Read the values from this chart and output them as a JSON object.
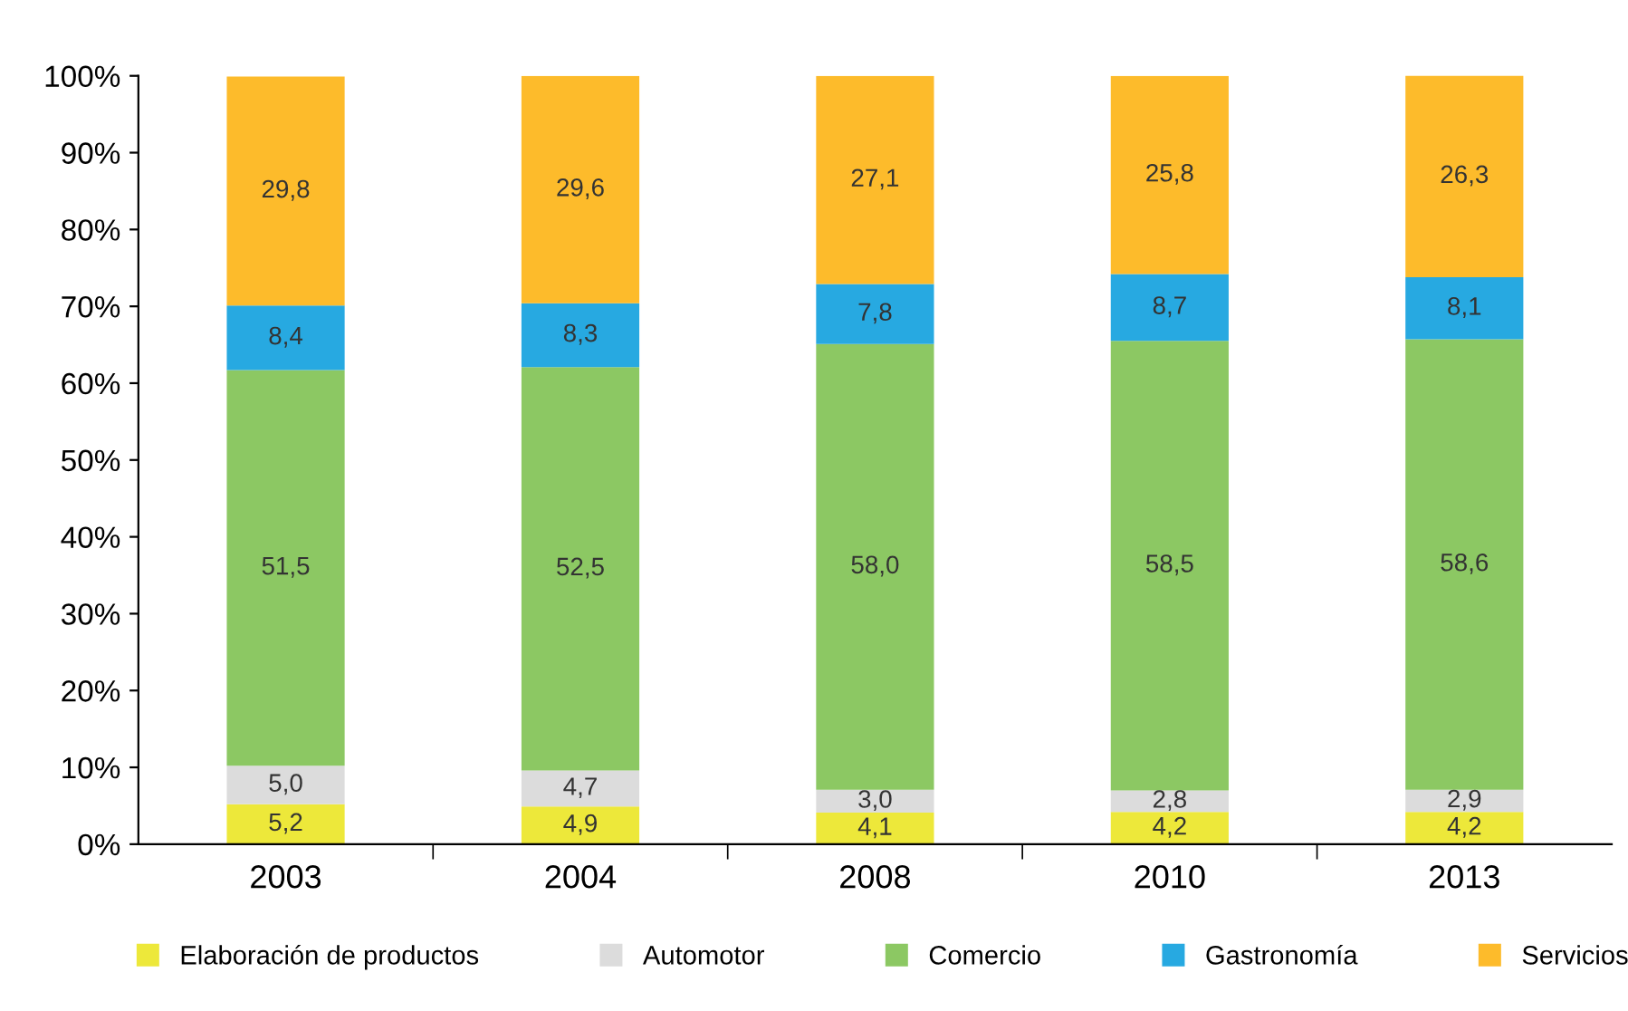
{
  "chart_data": {
    "type": "bar",
    "stacked": true,
    "categories": [
      "2003",
      "2004",
      "2008",
      "2010",
      "2013"
    ],
    "series": [
      {
        "name": "Elaboración de productos",
        "color": "#ede83a",
        "values": [
          5.2,
          4.9,
          4.1,
          4.2,
          4.2
        ],
        "value_labels": [
          "5,2",
          "4,9",
          "4,1",
          "4,2",
          "4,2"
        ]
      },
      {
        "name": "Automotor",
        "color": "#dcdcdc",
        "values": [
          5.0,
          4.7,
          3.0,
          2.8,
          2.9
        ],
        "value_labels": [
          "5,0",
          "4,7",
          "3,0",
          "2,8",
          "2,9"
        ]
      },
      {
        "name": "Comercio",
        "color": "#8cc863",
        "values": [
          51.5,
          52.5,
          58.0,
          58.5,
          58.6
        ],
        "value_labels": [
          "51,5",
          "52,5",
          "58,0",
          "58,5",
          "58,6"
        ]
      },
      {
        "name": "Gastronomía",
        "color": "#27a9e1",
        "values": [
          8.4,
          8.3,
          7.8,
          8.7,
          8.1
        ],
        "value_labels": [
          "8,4",
          "8,3",
          "7,8",
          "8,7",
          "8,1"
        ]
      },
      {
        "name": "Servicios",
        "color": "#fdbb2b",
        "values": [
          29.8,
          29.6,
          27.1,
          25.8,
          26.3
        ],
        "value_labels": [
          "29,8",
          "29,6",
          "27,1",
          "25,8",
          "26,3"
        ]
      }
    ],
    "ylim": [
      0,
      100
    ],
    "yticks": [
      {
        "value": 0,
        "label": "0%"
      },
      {
        "value": 10,
        "label": "10%"
      },
      {
        "value": 20,
        "label": "20%"
      },
      {
        "value": 30,
        "label": "30%"
      },
      {
        "value": 40,
        "label": "40%"
      },
      {
        "value": 50,
        "label": "50%"
      },
      {
        "value": 60,
        "label": "60%"
      },
      {
        "value": 70,
        "label": "70%"
      },
      {
        "value": 80,
        "label": "80%"
      },
      {
        "value": 90,
        "label": "90%"
      },
      {
        "value": 100,
        "label": "100%"
      }
    ],
    "grid": false,
    "legend": "bottom",
    "marker": "square"
  }
}
